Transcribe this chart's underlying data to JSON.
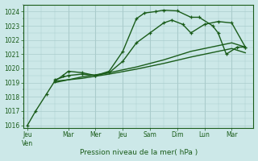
{
  "background_color": "#cce8e8",
  "grid_color": "#aacccc",
  "line_color": "#1a5c1a",
  "xlabel": "Pression niveau de la mer( hPa )",
  "ylim": [
    1015.8,
    1024.5
  ],
  "yticks": [
    1016,
    1017,
    1018,
    1019,
    1020,
    1021,
    1022,
    1023,
    1024
  ],
  "xlim": [
    -0.15,
    8.3
  ],
  "xtick_labels": [
    "Jeu\nVen",
    "Mar",
    "Mer",
    "Jeu",
    "Sam",
    "Dim",
    "Lun",
    "Mar"
  ],
  "xtick_positions": [
    0,
    1.5,
    2.5,
    3.5,
    4.5,
    5.5,
    6.5,
    7.5
  ],
  "series": [
    {
      "x": [
        0,
        0.3,
        0.7,
        1.0,
        1.3,
        1.5,
        2.0,
        2.5,
        3.0,
        3.5,
        4.0,
        4.3,
        4.7,
        5.0,
        5.5,
        6.0,
        6.3,
        6.8,
        7.0,
        7.3,
        7.7,
        8.0
      ],
      "y": [
        1016.0,
        1017.0,
        1018.2,
        1019.1,
        1019.5,
        1019.8,
        1019.7,
        1019.5,
        1019.8,
        1021.2,
        1023.5,
        1023.9,
        1024.0,
        1024.1,
        1024.05,
        1023.6,
        1023.6,
        1023.0,
        1022.5,
        1021.0,
        1021.5,
        1021.5
      ],
      "has_markers": true,
      "linewidth": 1.0
    },
    {
      "x": [
        1.0,
        1.5,
        2.0,
        2.5,
        3.0,
        3.5,
        4.0,
        4.5,
        5.0,
        5.3,
        5.7,
        6.0,
        6.5,
        7.0,
        7.5,
        8.0
      ],
      "y": [
        1019.2,
        1019.5,
        1019.6,
        1019.5,
        1019.7,
        1020.5,
        1021.8,
        1022.5,
        1023.2,
        1023.4,
        1023.1,
        1022.5,
        1023.1,
        1023.3,
        1023.2,
        1021.5
      ],
      "has_markers": true,
      "linewidth": 1.0
    },
    {
      "x": [
        1.0,
        2.0,
        3.0,
        4.0,
        5.0,
        6.0,
        7.0,
        7.5,
        8.0
      ],
      "y": [
        1019.0,
        1019.4,
        1019.7,
        1020.1,
        1020.6,
        1021.2,
        1021.6,
        1021.8,
        1021.5
      ],
      "has_markers": false,
      "linewidth": 1.0
    },
    {
      "x": [
        1.0,
        2.0,
        3.0,
        4.0,
        5.0,
        6.0,
        7.0,
        7.5,
        8.0
      ],
      "y": [
        1019.1,
        1019.3,
        1019.6,
        1019.95,
        1020.35,
        1020.8,
        1021.2,
        1021.4,
        1021.1
      ],
      "has_markers": false,
      "linewidth": 1.0
    }
  ]
}
